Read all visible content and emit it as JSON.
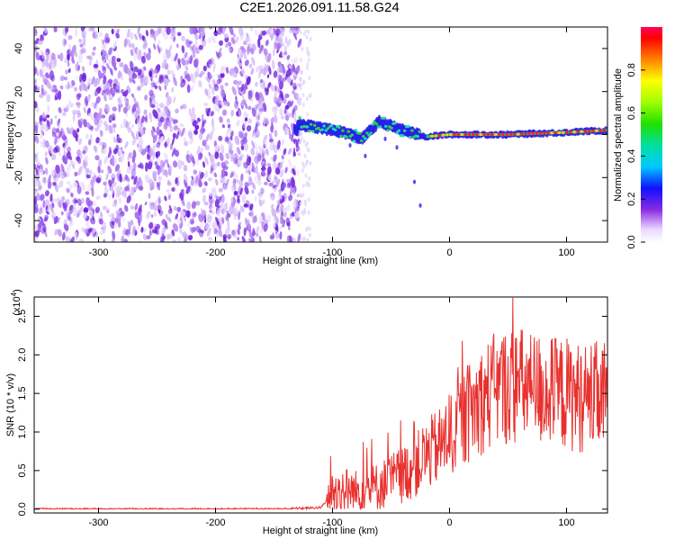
{
  "title": "C2E1.2026.091.11.58.G24",
  "chart_data": [
    {
      "type": "heatmap",
      "title": "C2E1.2026.091.11.58.G24",
      "xlabel": "Height of straight line (km)",
      "ylabel": "Frequency (Hz)",
      "xlim": [
        -355,
        135
      ],
      "ylim": [
        -50,
        50
      ],
      "xticks": [
        -300,
        -200,
        -100,
        0,
        100
      ],
      "yticks": [
        -40,
        -20,
        0,
        20,
        40
      ],
      "noise_region_x": [
        -355,
        -128
      ],
      "signal_track": [
        {
          "x": -130,
          "y": 5
        },
        {
          "x": -110,
          "y": 3
        },
        {
          "x": -90,
          "y": 1
        },
        {
          "x": -75,
          "y": -2
        },
        {
          "x": -60,
          "y": 6
        },
        {
          "x": -50,
          "y": 4
        },
        {
          "x": -40,
          "y": 2
        },
        {
          "x": -20,
          "y": -1
        },
        {
          "x": 0,
          "y": 0
        },
        {
          "x": 50,
          "y": 0
        },
        {
          "x": 100,
          "y": 1
        },
        {
          "x": 135,
          "y": 2
        }
      ],
      "colorbar": {
        "label": "Normalized spectral amplitude",
        "ticks": [
          0.0,
          0.2,
          0.4,
          0.6,
          0.8
        ],
        "range": [
          0,
          1
        ]
      }
    },
    {
      "type": "line",
      "xlabel": "Height of straight line (km)",
      "ylabel": "SNR (10 * v/v)",
      "scale_label": "(x10",
      "scale_exp": "4",
      "scale_close": ")",
      "xlim": [
        -355,
        135
      ],
      "ylim": [
        -0.05,
        2.75
      ],
      "xticks": [
        -300,
        -200,
        -100,
        0,
        100
      ],
      "yticks": [
        0.0,
        0.5,
        1.0,
        1.5,
        2.0,
        2.5
      ],
      "series": [
        {
          "name": "SNR",
          "color": "#e8312e",
          "x": [
            -355,
            -300,
            -250,
            -200,
            -150,
            -110,
            -100,
            -90,
            -80,
            -70,
            -60,
            -50,
            -40,
            -30,
            -20,
            -10,
            0,
            10,
            20,
            30,
            40,
            50,
            60,
            70,
            80,
            90,
            100,
            110,
            120,
            135
          ],
          "values": [
            0.0,
            0.0,
            0.0,
            0.0,
            0.0,
            0.02,
            0.2,
            0.25,
            0.22,
            0.25,
            0.3,
            0.38,
            0.45,
            0.55,
            0.7,
            0.8,
            0.95,
            1.15,
            1.3,
            1.45,
            1.55,
            1.6,
            1.6,
            1.55,
            1.55,
            1.5,
            1.5,
            1.45,
            1.45,
            1.45
          ]
        }
      ]
    }
  ],
  "colors": {
    "signal_line": "#e8312e",
    "noise_purple": "#7a2ee0"
  }
}
